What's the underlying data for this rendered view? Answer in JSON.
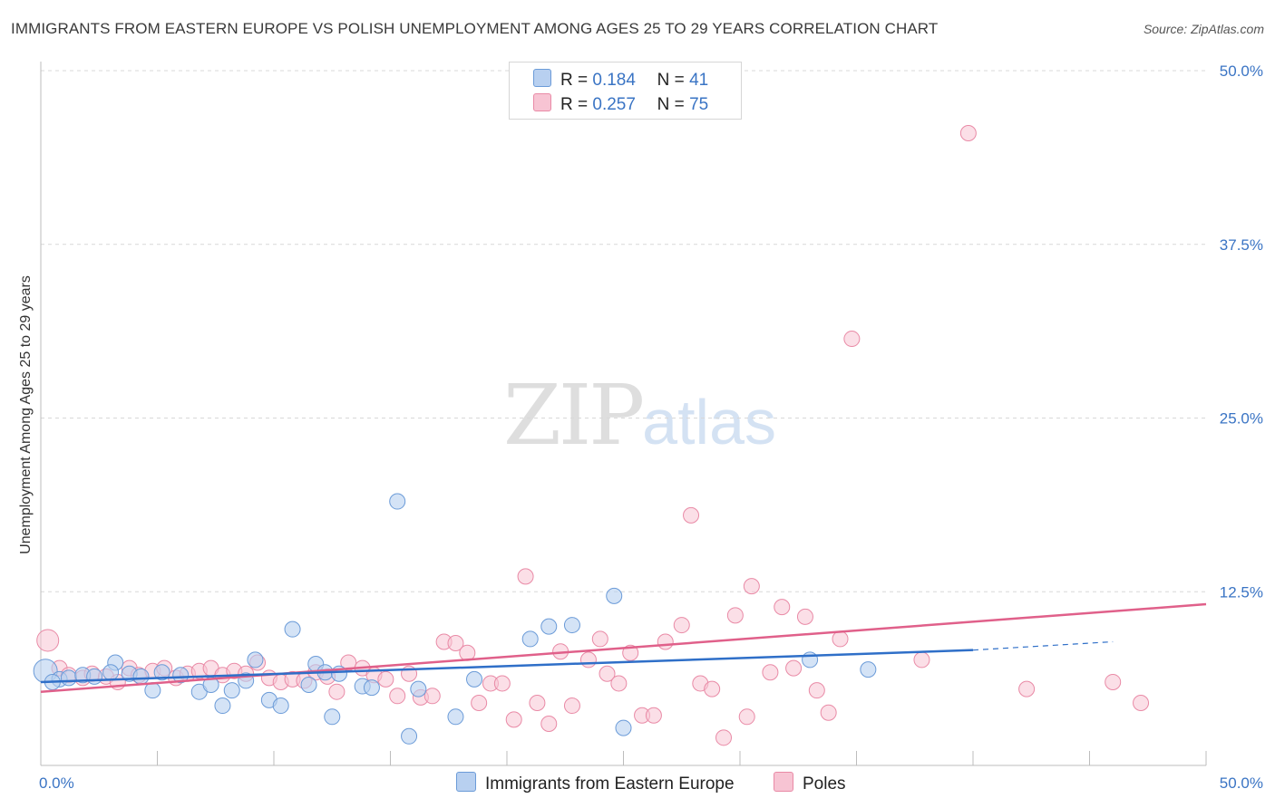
{
  "title": "IMMIGRANTS FROM EASTERN EUROPE VS POLISH UNEMPLOYMENT AMONG AGES 25 TO 29 YEARS CORRELATION CHART",
  "source": "Source: ZipAtlas.com",
  "watermark": {
    "zip": "ZIP",
    "atlas": "atlas"
  },
  "legend": {
    "r_label": "R =",
    "n_label": "N =",
    "series": [
      {
        "name": "Immigrants from Eastern Europe",
        "r": "0.184",
        "n": "41"
      },
      {
        "name": "Poles",
        "r": "0.257",
        "n": "75"
      }
    ]
  },
  "colors": {
    "blue_fill": "#b8d0f0",
    "blue_stroke": "#6b9bd8",
    "blue_line": "#2f6fc8",
    "pink_fill": "#f7c4d3",
    "pink_stroke": "#e98aa6",
    "pink_line": "#e0608a",
    "grid": "#d8d8d8",
    "axis_text": "#3a74c4"
  },
  "chart_data": {
    "type": "scatter",
    "title": "IMMIGRANTS FROM EASTERN EUROPE VS POLISH UNEMPLOYMENT AMONG AGES 25 TO 29 YEARS CORRELATION CHART",
    "xlabel": "",
    "ylabel": "Unemployment Among Ages 25 to 29 years",
    "xlim": [
      0,
      50
    ],
    "ylim": [
      0,
      50
    ],
    "x_tick_labels": [
      "0.0%",
      "50.0%"
    ],
    "y_tick_labels": [
      "12.5%",
      "25.0%",
      "37.5%",
      "50.0%"
    ],
    "y_ticks": [
      12.5,
      25,
      37.5,
      50
    ],
    "grid": true,
    "legend_position": "top-center",
    "series": [
      {
        "name": "Immigrants from Eastern Europe",
        "r": 0.184,
        "n": 41,
        "trend": {
          "x0": 0,
          "y0": 6.0,
          "x1": 40,
          "y1": 8.3,
          "dash_to_x": 46,
          "dash_to_y": 8.9
        },
        "points": [
          [
            0.2,
            6.8
          ],
          [
            0.8,
            6.2
          ],
          [
            1.2,
            6.3
          ],
          [
            1.8,
            6.5
          ],
          [
            2.3,
            6.4
          ],
          [
            3.2,
            7.4
          ],
          [
            3.8,
            6.6
          ],
          [
            4.3,
            6.4
          ],
          [
            4.8,
            5.4
          ],
          [
            5.2,
            6.7
          ],
          [
            6.0,
            6.5
          ],
          [
            6.8,
            5.3
          ],
          [
            7.3,
            5.8
          ],
          [
            7.8,
            4.3
          ],
          [
            8.2,
            5.4
          ],
          [
            8.8,
            6.1
          ],
          [
            9.2,
            7.6
          ],
          [
            9.8,
            4.7
          ],
          [
            10.3,
            4.3
          ],
          [
            10.8,
            9.8
          ],
          [
            11.5,
            5.8
          ],
          [
            11.8,
            7.3
          ],
          [
            12.2,
            6.7
          ],
          [
            12.5,
            3.5
          ],
          [
            12.8,
            6.6
          ],
          [
            13.8,
            5.7
          ],
          [
            14.2,
            5.6
          ],
          [
            15.3,
            19.0
          ],
          [
            15.8,
            2.1
          ],
          [
            16.2,
            5.5
          ],
          [
            17.8,
            3.5
          ],
          [
            18.6,
            6.2
          ],
          [
            21.0,
            9.1
          ],
          [
            21.8,
            10.0
          ],
          [
            22.8,
            10.1
          ],
          [
            24.6,
            12.2
          ],
          [
            25.0,
            2.7
          ],
          [
            33.0,
            7.6
          ],
          [
            35.5,
            6.9
          ],
          [
            0.5,
            6.0
          ],
          [
            3.0,
            6.7
          ]
        ]
      },
      {
        "name": "Poles",
        "r": 0.257,
        "n": 75,
        "trend": {
          "x0": 0,
          "y0": 5.3,
          "x1": 50,
          "y1": 11.6
        },
        "points": [
          [
            0.3,
            9.0
          ],
          [
            0.8,
            7.0
          ],
          [
            1.2,
            6.5
          ],
          [
            1.8,
            6.3
          ],
          [
            2.2,
            6.6
          ],
          [
            2.8,
            6.4
          ],
          [
            3.3,
            6.0
          ],
          [
            3.8,
            7.0
          ],
          [
            4.2,
            6.5
          ],
          [
            4.8,
            6.8
          ],
          [
            5.3,
            7.0
          ],
          [
            5.8,
            6.3
          ],
          [
            6.3,
            6.6
          ],
          [
            6.8,
            6.8
          ],
          [
            7.3,
            7.0
          ],
          [
            7.8,
            6.5
          ],
          [
            8.3,
            6.8
          ],
          [
            8.8,
            6.6
          ],
          [
            9.3,
            7.4
          ],
          [
            9.8,
            6.3
          ],
          [
            10.3,
            6.0
          ],
          [
            10.8,
            6.2
          ],
          [
            11.3,
            6.1
          ],
          [
            11.8,
            6.7
          ],
          [
            12.3,
            6.4
          ],
          [
            12.7,
            5.3
          ],
          [
            13.2,
            7.4
          ],
          [
            13.8,
            7.0
          ],
          [
            14.3,
            6.5
          ],
          [
            14.8,
            6.2
          ],
          [
            15.3,
            5.0
          ],
          [
            15.8,
            6.6
          ],
          [
            16.3,
            4.9
          ],
          [
            16.8,
            5.0
          ],
          [
            17.3,
            8.9
          ],
          [
            17.8,
            8.8
          ],
          [
            18.3,
            8.1
          ],
          [
            18.8,
            4.5
          ],
          [
            19.3,
            5.9
          ],
          [
            19.8,
            5.9
          ],
          [
            20.3,
            3.3
          ],
          [
            20.8,
            13.6
          ],
          [
            21.3,
            4.5
          ],
          [
            21.8,
            3.0
          ],
          [
            22.3,
            8.2
          ],
          [
            22.8,
            4.3
          ],
          [
            23.5,
            7.6
          ],
          [
            24.0,
            9.1
          ],
          [
            24.3,
            6.6
          ],
          [
            24.8,
            5.9
          ],
          [
            25.3,
            8.1
          ],
          [
            25.8,
            3.6
          ],
          [
            26.3,
            3.6
          ],
          [
            26.8,
            8.9
          ],
          [
            27.5,
            10.1
          ],
          [
            27.9,
            18.0
          ],
          [
            28.3,
            5.9
          ],
          [
            28.8,
            5.5
          ],
          [
            29.3,
            2.0
          ],
          [
            29.8,
            10.8
          ],
          [
            30.3,
            3.5
          ],
          [
            30.5,
            12.9
          ],
          [
            31.3,
            6.7
          ],
          [
            31.8,
            11.4
          ],
          [
            32.3,
            7.0
          ],
          [
            32.8,
            10.7
          ],
          [
            33.3,
            5.4
          ],
          [
            33.8,
            3.8
          ],
          [
            34.3,
            9.1
          ],
          [
            34.8,
            30.7
          ],
          [
            37.8,
            7.6
          ],
          [
            39.8,
            45.5
          ],
          [
            42.3,
            5.5
          ],
          [
            46.0,
            6.0
          ],
          [
            47.2,
            4.5
          ]
        ]
      }
    ]
  }
}
